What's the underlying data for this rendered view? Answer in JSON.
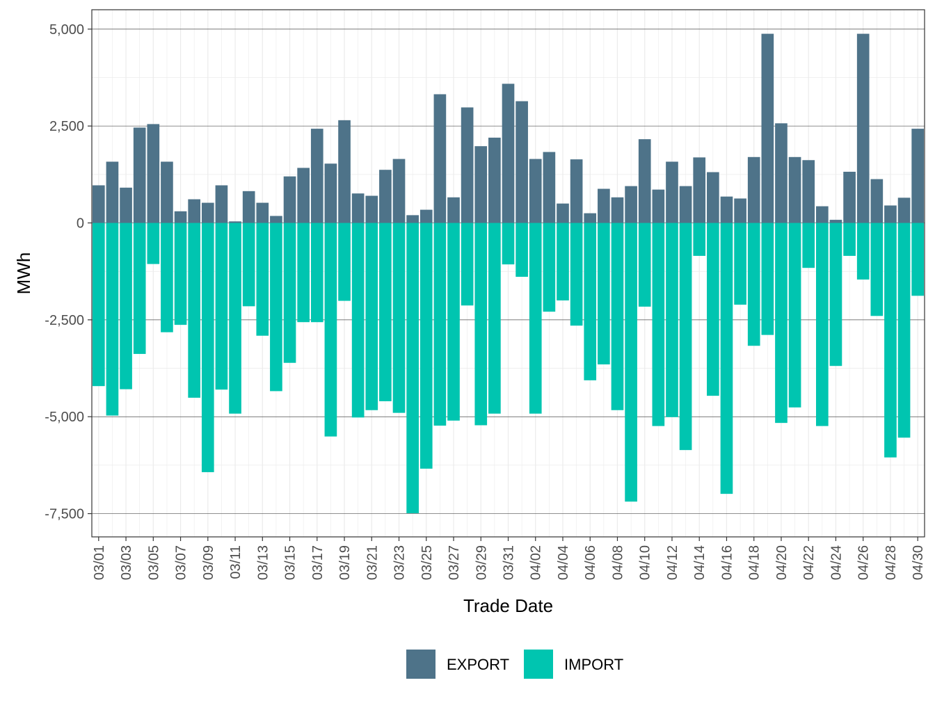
{
  "chart_data": {
    "type": "bar",
    "stacked": true,
    "xlabel": "Trade Date",
    "ylabel": "MWh",
    "ylim": [
      -8100,
      5500
    ],
    "y_ticks": [
      5000,
      2500,
      0,
      -2500,
      -5000,
      -7500
    ],
    "y_tick_labels": [
      "5,000",
      "2,500",
      "0",
      "-2,500",
      "-5,000",
      "-7,500"
    ],
    "grid": true,
    "legend_position": "bottom",
    "categories": [
      "03/01",
      "03/02",
      "03/03",
      "03/04",
      "03/05",
      "03/06",
      "03/07",
      "03/08",
      "03/09",
      "03/10",
      "03/11",
      "03/12",
      "03/13",
      "03/14",
      "03/15",
      "03/16",
      "03/17",
      "03/18",
      "03/19",
      "03/20",
      "03/21",
      "03/22",
      "03/23",
      "03/24",
      "03/25",
      "03/26",
      "03/27",
      "03/28",
      "03/29",
      "03/30",
      "03/31",
      "04/01",
      "04/02",
      "04/03",
      "04/04",
      "04/05",
      "04/06",
      "04/07",
      "04/08",
      "04/09",
      "04/10",
      "04/11",
      "04/12",
      "04/13",
      "04/14",
      "04/15",
      "04/16",
      "04/17",
      "04/18",
      "04/19",
      "04/20",
      "04/21",
      "04/22",
      "04/23",
      "04/24",
      "04/25",
      "04/26",
      "04/27",
      "04/28",
      "04/29",
      "04/30"
    ],
    "x_tick_labels": [
      "03/01",
      "03/03",
      "03/05",
      "03/07",
      "03/09",
      "03/11",
      "03/13",
      "03/15",
      "03/17",
      "03/19",
      "03/21",
      "03/23",
      "03/25",
      "03/27",
      "03/29",
      "03/31",
      "04/02",
      "04/04",
      "04/06",
      "04/08",
      "04/10",
      "04/12",
      "04/14",
      "04/16",
      "04/18",
      "04/20",
      "04/22",
      "04/24",
      "04/26",
      "04/28",
      "04/30"
    ],
    "series": [
      {
        "name": "EXPORT",
        "color": "#4e7389",
        "values": [
          970,
          1580,
          910,
          2460,
          2550,
          1580,
          300,
          610,
          520,
          970,
          40,
          820,
          520,
          180,
          1200,
          1420,
          2430,
          1530,
          2650,
          760,
          700,
          1370,
          1650,
          200,
          340,
          3320,
          660,
          2980,
          1980,
          2200,
          3590,
          3140,
          1650,
          1830,
          500,
          1640,
          250,
          880,
          660,
          950,
          2160,
          860,
          1580,
          950,
          1690,
          1310,
          680,
          630,
          1700,
          4880,
          2570,
          1700,
          1620,
          430,
          80,
          1320,
          4880,
          1130,
          450,
          650,
          2430
        ]
      },
      {
        "name": "IMPORT",
        "color": "#00c5b0",
        "values": [
          -4210,
          -4970,
          -4290,
          -3380,
          -1060,
          -2820,
          -2630,
          -4510,
          -6430,
          -4300,
          -4920,
          -2150,
          -2910,
          -4340,
          -3610,
          -2560,
          -2560,
          -5510,
          -2010,
          -5020,
          -4830,
          -4600,
          -4900,
          -7490,
          -6340,
          -5230,
          -5100,
          -2130,
          -5220,
          -4920,
          -1070,
          -1390,
          -4920,
          -2290,
          -2000,
          -2650,
          -4060,
          -3650,
          -4830,
          -7190,
          -2160,
          -5240,
          -5010,
          -5860,
          -850,
          -4460,
          -6990,
          -2110,
          -3170,
          -2890,
          -5160,
          -4760,
          -1160,
          -5240,
          -3690,
          -850,
          -1460,
          -2400,
          -6050,
          -5540,
          -1880
        ]
      }
    ]
  }
}
